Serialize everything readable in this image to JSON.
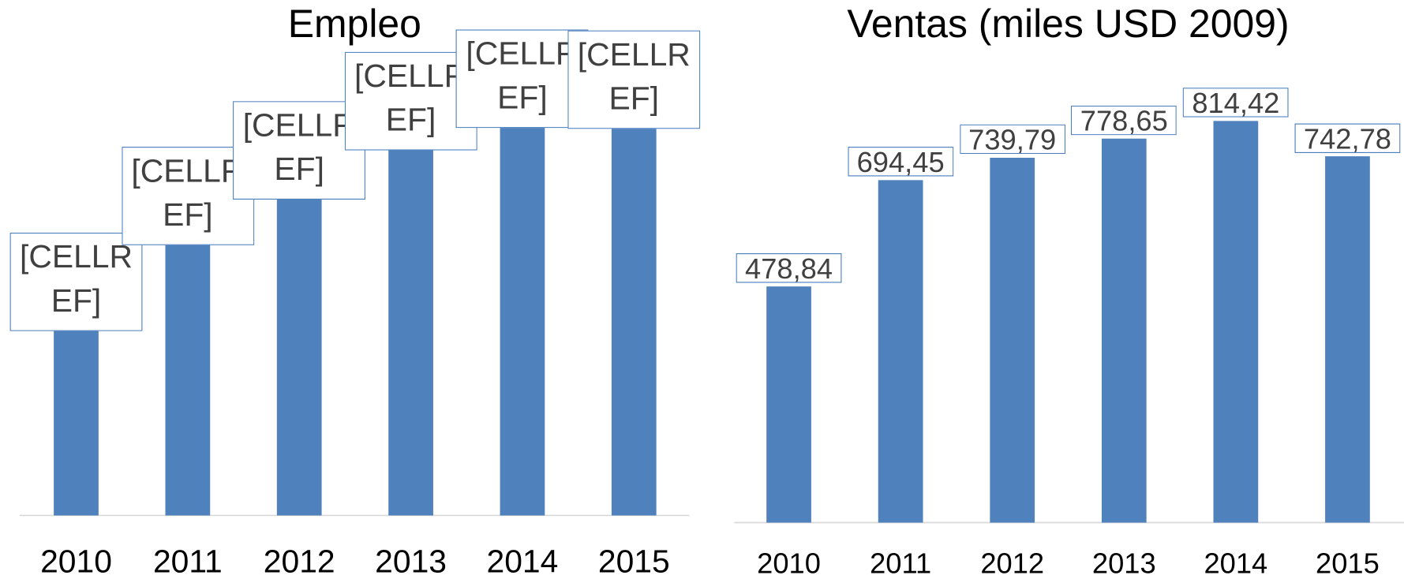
{
  "chart_data": [
    {
      "type": "bar",
      "title": "Empleo",
      "categories": [
        "2010",
        "2011",
        "2012",
        "2013",
        "2014",
        "2015"
      ],
      "values": [
        227,
        323,
        374,
        429,
        454,
        453
      ],
      "value_labels": [
        "[CELLREF]",
        "[CELLREF]",
        "[CELLREF]",
        "[CELLREF]",
        "[CELLREF]",
        "[CELLREF]"
      ],
      "color": "#4f81bd",
      "ylim": [
        0,
        500
      ]
    },
    {
      "type": "bar",
      "title": "Ventas (miles USD 2009)",
      "categories": [
        "2010",
        "2011",
        "2012",
        "2013",
        "2014",
        "2015"
      ],
      "values": [
        478.84,
        694.45,
        739.79,
        778.65,
        814.42,
        742.78
      ],
      "value_labels": [
        "478,84",
        "694,45",
        "739,79",
        "778,65",
        "814,42",
        "742,78"
      ],
      "color": "#4f81bd",
      "ylim": [
        0,
        900
      ]
    }
  ]
}
